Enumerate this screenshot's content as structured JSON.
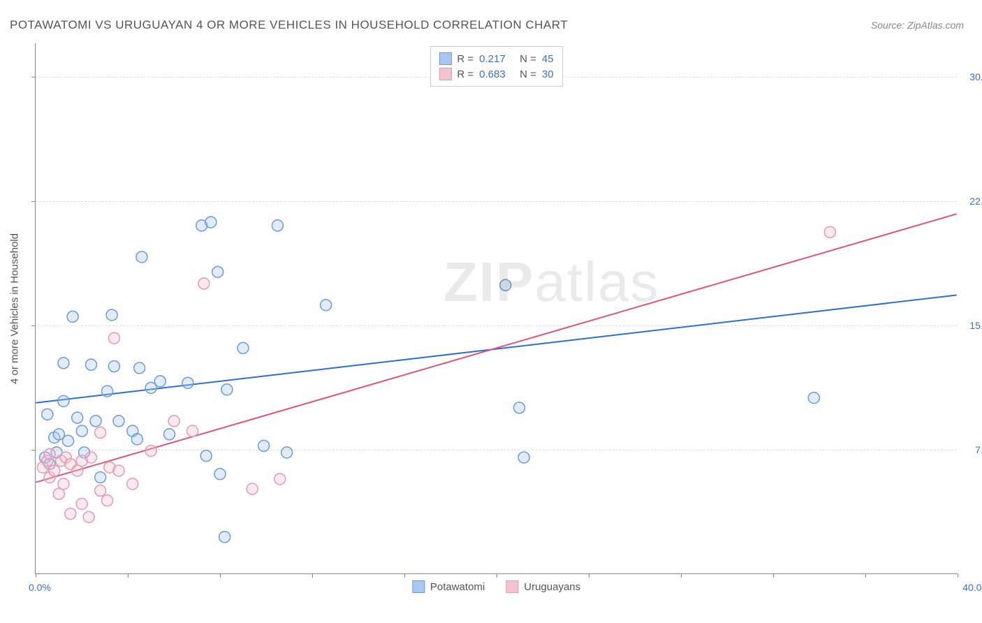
{
  "title": "POTAWATOMI VS URUGUAYAN 4 OR MORE VEHICLES IN HOUSEHOLD CORRELATION CHART",
  "source_label": "Source: ZipAtlas.com",
  "y_axis_label": "4 or more Vehicles in Household",
  "watermark": {
    "bold": "ZIP",
    "light": "atlas"
  },
  "chart": {
    "type": "scatter-with-regression",
    "background_color": "#ffffff",
    "grid_color": "#dddddd",
    "axis_color": "#888888",
    "tick_label_color": "#3b6fd6",
    "axis_label_color": "#555555",
    "xlim": [
      0,
      40
    ],
    "ylim": [
      0,
      32
    ],
    "x_ticks": [
      0,
      4,
      8,
      12,
      16,
      20,
      24,
      28,
      32,
      36,
      40
    ],
    "x_start_label": "0.0%",
    "x_end_label": "40.0%",
    "y_gridlines": [
      {
        "value": 7.5,
        "label": "7.5%"
      },
      {
        "value": 15.0,
        "label": "15.0%"
      },
      {
        "value": 22.5,
        "label": "22.5%"
      },
      {
        "value": 30.0,
        "label": "30.0%"
      }
    ],
    "marker_radius": 8,
    "marker_stroke_width": 1.5,
    "marker_fill_opacity": 0.35,
    "line_width": 2,
    "series": [
      {
        "name": "Potawatomi",
        "color_stroke": "#6a9be0",
        "color_fill": "#a9c7ef",
        "line_color": "#2b6fd6",
        "r_value": "0.217",
        "n_value": "45",
        "regression": {
          "x1": 0,
          "y1": 10.3,
          "x2": 40,
          "y2": 16.8
        },
        "points": [
          {
            "x": 0.4,
            "y": 7.0
          },
          {
            "x": 0.6,
            "y": 6.6
          },
          {
            "x": 0.5,
            "y": 9.6
          },
          {
            "x": 0.8,
            "y": 8.2
          },
          {
            "x": 0.9,
            "y": 7.3
          },
          {
            "x": 1.0,
            "y": 8.4
          },
          {
            "x": 1.2,
            "y": 10.4
          },
          {
            "x": 1.2,
            "y": 12.7
          },
          {
            "x": 1.4,
            "y": 8.0
          },
          {
            "x": 1.6,
            "y": 15.5
          },
          {
            "x": 1.8,
            "y": 9.4
          },
          {
            "x": 2.0,
            "y": 8.6
          },
          {
            "x": 2.1,
            "y": 7.3
          },
          {
            "x": 2.4,
            "y": 12.6
          },
          {
            "x": 2.6,
            "y": 9.2
          },
          {
            "x": 2.8,
            "y": 5.8
          },
          {
            "x": 3.1,
            "y": 11.0
          },
          {
            "x": 3.3,
            "y": 15.6
          },
          {
            "x": 3.4,
            "y": 12.5
          },
          {
            "x": 3.6,
            "y": 9.2
          },
          {
            "x": 4.2,
            "y": 8.6
          },
          {
            "x": 4.4,
            "y": 8.1
          },
          {
            "x": 4.5,
            "y": 12.4
          },
          {
            "x": 4.6,
            "y": 19.1
          },
          {
            "x": 5.0,
            "y": 11.2
          },
          {
            "x": 5.4,
            "y": 11.6
          },
          {
            "x": 5.8,
            "y": 8.4
          },
          {
            "x": 6.6,
            "y": 11.5
          },
          {
            "x": 7.2,
            "y": 21.0
          },
          {
            "x": 7.4,
            "y": 7.1
          },
          {
            "x": 7.6,
            "y": 21.2
          },
          {
            "x": 7.9,
            "y": 18.2
          },
          {
            "x": 8.0,
            "y": 6.0
          },
          {
            "x": 8.3,
            "y": 11.1
          },
          {
            "x": 8.2,
            "y": 2.2
          },
          {
            "x": 9.0,
            "y": 13.6
          },
          {
            "x": 9.9,
            "y": 7.7
          },
          {
            "x": 10.5,
            "y": 21.0
          },
          {
            "x": 10.9,
            "y": 7.3
          },
          {
            "x": 12.6,
            "y": 16.2
          },
          {
            "x": 20.4,
            "y": 17.4
          },
          {
            "x": 21.0,
            "y": 10.0
          },
          {
            "x": 21.2,
            "y": 7.0
          },
          {
            "x": 33.8,
            "y": 10.6
          },
          {
            "x": 20.0,
            "y": 30.4
          }
        ]
      },
      {
        "name": "Uruguayans",
        "color_stroke": "#e59ab0",
        "color_fill": "#f2c3d0",
        "line_color": "#e0527a",
        "r_value": "0.683",
        "n_value": "30",
        "regression": {
          "x1": 0,
          "y1": 5.5,
          "x2": 40,
          "y2": 21.7
        },
        "points": [
          {
            "x": 0.3,
            "y": 6.4
          },
          {
            "x": 0.5,
            "y": 6.8
          },
          {
            "x": 0.6,
            "y": 5.8
          },
          {
            "x": 0.6,
            "y": 7.2
          },
          {
            "x": 0.8,
            "y": 6.2
          },
          {
            "x": 1.0,
            "y": 4.8
          },
          {
            "x": 1.1,
            "y": 6.8
          },
          {
            "x": 1.2,
            "y": 5.4
          },
          {
            "x": 1.3,
            "y": 7.0
          },
          {
            "x": 1.5,
            "y": 3.6
          },
          {
            "x": 1.5,
            "y": 6.6
          },
          {
            "x": 1.8,
            "y": 6.2
          },
          {
            "x": 2.0,
            "y": 4.2
          },
          {
            "x": 2.0,
            "y": 6.8
          },
          {
            "x": 2.3,
            "y": 3.4
          },
          {
            "x": 2.4,
            "y": 7.0
          },
          {
            "x": 2.8,
            "y": 5.0
          },
          {
            "x": 2.8,
            "y": 8.5
          },
          {
            "x": 3.1,
            "y": 4.4
          },
          {
            "x": 3.2,
            "y": 6.4
          },
          {
            "x": 3.4,
            "y": 14.2
          },
          {
            "x": 3.6,
            "y": 6.2
          },
          {
            "x": 4.2,
            "y": 5.4
          },
          {
            "x": 5.0,
            "y": 7.4
          },
          {
            "x": 6.0,
            "y": 9.2
          },
          {
            "x": 6.8,
            "y": 8.6
          },
          {
            "x": 7.3,
            "y": 17.5
          },
          {
            "x": 9.4,
            "y": 5.1
          },
          {
            "x": 10.6,
            "y": 5.7
          },
          {
            "x": 34.5,
            "y": 20.6
          }
        ]
      }
    ]
  },
  "legend": {
    "items": [
      {
        "label": "Potawatomi",
        "swatch_fill": "#a9c7ef",
        "swatch_stroke": "#6a9be0"
      },
      {
        "label": "Uruguayans",
        "swatch_fill": "#f2c3d0",
        "swatch_stroke": "#e59ab0"
      }
    ]
  }
}
